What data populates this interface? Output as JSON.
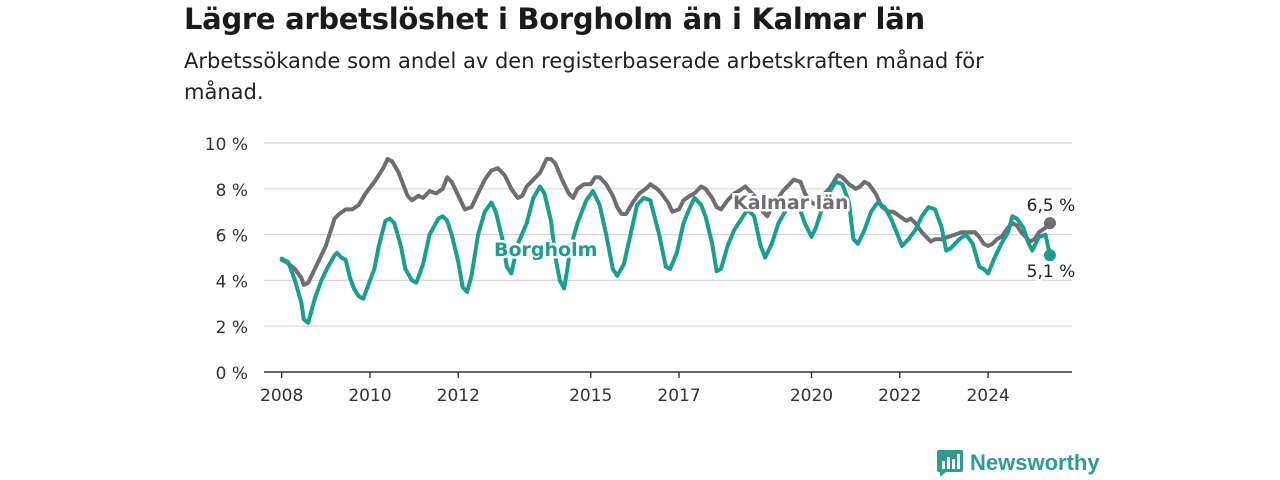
{
  "header": {
    "title": "Lägre arbetslöshet i Borgholm än i Kalmar län",
    "subtitle": "Arbetssökande som andel av den registerbaserade arbetskraften månad för månad."
  },
  "brand": {
    "name": "Newsworthy",
    "icon": "bar-chart-logo-icon",
    "color": "#2f9c94"
  },
  "chart_data": {
    "type": "line",
    "title": "Lägre arbetslöshet i Borgholm än i Kalmar län",
    "subtitle": "Arbetssökande som andel av den registerbaserade arbetskraften månad för månad.",
    "x_ticks": [
      {
        "value": 2008,
        "label": "2008"
      },
      {
        "value": 2010,
        "label": "2010"
      },
      {
        "value": 2012,
        "label": "2012"
      },
      {
        "value": 2015,
        "label": "2015"
      },
      {
        "value": 2017,
        "label": "2017"
      },
      {
        "value": 2020,
        "label": "2020"
      },
      {
        "value": 2022,
        "label": "2022"
      },
      {
        "value": 2024,
        "label": "2024"
      }
    ],
    "y_ticks": [
      {
        "value": 0,
        "label": "0 %"
      },
      {
        "value": 2,
        "label": "2 %"
      },
      {
        "value": 4,
        "label": "4 %"
      },
      {
        "value": 6,
        "label": "6 %"
      },
      {
        "value": 8,
        "label": "8 %"
      },
      {
        "value": 10,
        "label": "10 %"
      }
    ],
    "xlim": [
      2007.6,
      2025.9
    ],
    "ylim": [
      0,
      10
    ],
    "grid": "horizontal",
    "series": [
      {
        "name": "Kalmar län",
        "color": "#6e6d72",
        "label": "Kalmar län",
        "end_label": "6,5 %",
        "end_value": 6.5,
        "points": [
          [
            2008.0,
            4.9
          ],
          [
            2008.1,
            4.8
          ],
          [
            2008.3,
            4.5
          ],
          [
            2008.45,
            4.1
          ],
          [
            2008.5,
            3.8
          ],
          [
            2008.6,
            3.9
          ],
          [
            2008.8,
            4.7
          ],
          [
            2009.0,
            5.5
          ],
          [
            2009.2,
            6.7
          ],
          [
            2009.3,
            6.9
          ],
          [
            2009.45,
            7.1
          ],
          [
            2009.6,
            7.1
          ],
          [
            2009.75,
            7.3
          ],
          [
            2009.9,
            7.8
          ],
          [
            2010.1,
            8.3
          ],
          [
            2010.3,
            8.9
          ],
          [
            2010.4,
            9.3
          ],
          [
            2010.5,
            9.2
          ],
          [
            2010.65,
            8.7
          ],
          [
            2010.85,
            7.7
          ],
          [
            2010.95,
            7.5
          ],
          [
            2011.1,
            7.7
          ],
          [
            2011.2,
            7.6
          ],
          [
            2011.35,
            7.9
          ],
          [
            2011.5,
            7.8
          ],
          [
            2011.65,
            8.0
          ],
          [
            2011.75,
            8.5
          ],
          [
            2011.85,
            8.3
          ],
          [
            2012.05,
            7.5
          ],
          [
            2012.15,
            7.1
          ],
          [
            2012.3,
            7.2
          ],
          [
            2012.45,
            7.8
          ],
          [
            2012.6,
            8.4
          ],
          [
            2012.75,
            8.8
          ],
          [
            2012.9,
            8.9
          ],
          [
            2013.05,
            8.6
          ],
          [
            2013.2,
            8.0
          ],
          [
            2013.35,
            7.6
          ],
          [
            2013.45,
            7.7
          ],
          [
            2013.55,
            8.1
          ],
          [
            2013.7,
            8.4
          ],
          [
            2013.85,
            8.7
          ],
          [
            2014.0,
            9.3
          ],
          [
            2014.1,
            9.3
          ],
          [
            2014.2,
            9.1
          ],
          [
            2014.35,
            8.4
          ],
          [
            2014.5,
            7.8
          ],
          [
            2014.6,
            7.6
          ],
          [
            2014.7,
            8.0
          ],
          [
            2014.85,
            8.2
          ],
          [
            2015.0,
            8.2
          ],
          [
            2015.1,
            8.5
          ],
          [
            2015.2,
            8.5
          ],
          [
            2015.35,
            8.2
          ],
          [
            2015.5,
            7.7
          ],
          [
            2015.6,
            7.2
          ],
          [
            2015.7,
            6.9
          ],
          [
            2015.8,
            6.9
          ],
          [
            2015.95,
            7.4
          ],
          [
            2016.1,
            7.8
          ],
          [
            2016.25,
            8.0
          ],
          [
            2016.35,
            8.2
          ],
          [
            2016.5,
            8.0
          ],
          [
            2016.6,
            7.8
          ],
          [
            2016.75,
            7.4
          ],
          [
            2016.85,
            7.0
          ],
          [
            2017.0,
            7.1
          ],
          [
            2017.1,
            7.5
          ],
          [
            2017.25,
            7.7
          ],
          [
            2017.35,
            7.8
          ],
          [
            2017.5,
            8.1
          ],
          [
            2017.6,
            8.0
          ],
          [
            2017.75,
            7.6
          ],
          [
            2017.85,
            7.2
          ],
          [
            2017.95,
            7.1
          ],
          [
            2018.1,
            7.5
          ],
          [
            2018.25,
            7.8
          ],
          [
            2018.35,
            7.9
          ],
          [
            2018.5,
            8.1
          ],
          [
            2018.6,
            7.9
          ],
          [
            2018.75,
            7.6
          ],
          [
            2018.9,
            7.0
          ],
          [
            2019.0,
            6.8
          ],
          [
            2019.1,
            7.2
          ],
          [
            2019.25,
            7.6
          ],
          [
            2019.35,
            7.9
          ],
          [
            2019.5,
            8.2
          ],
          [
            2019.6,
            8.4
          ],
          [
            2019.75,
            8.3
          ],
          [
            2019.85,
            7.8
          ],
          [
            2020.0,
            7.4
          ],
          [
            2020.1,
            7.3
          ],
          [
            2020.25,
            7.7
          ],
          [
            2020.4,
            8.0
          ],
          [
            2020.5,
            8.3
          ],
          [
            2020.6,
            8.6
          ],
          [
            2020.7,
            8.5
          ],
          [
            2020.85,
            8.2
          ],
          [
            2021.0,
            8.0
          ],
          [
            2021.1,
            8.1
          ],
          [
            2021.2,
            8.3
          ],
          [
            2021.3,
            8.2
          ],
          [
            2021.45,
            7.8
          ],
          [
            2021.6,
            7.2
          ],
          [
            2021.75,
            7.0
          ],
          [
            2021.85,
            7.0
          ],
          [
            2022.0,
            6.8
          ],
          [
            2022.15,
            6.6
          ],
          [
            2022.25,
            6.7
          ],
          [
            2022.35,
            6.5
          ],
          [
            2022.5,
            6.1
          ],
          [
            2022.6,
            5.9
          ],
          [
            2022.7,
            5.7
          ],
          [
            2022.8,
            5.8
          ],
          [
            2022.95,
            5.8
          ],
          [
            2023.1,
            5.9
          ],
          [
            2023.25,
            6.0
          ],
          [
            2023.4,
            6.1
          ],
          [
            2023.55,
            6.1
          ],
          [
            2023.7,
            6.1
          ],
          [
            2023.8,
            5.9
          ],
          [
            2023.9,
            5.6
          ],
          [
            2024.0,
            5.5
          ],
          [
            2024.1,
            5.6
          ],
          [
            2024.2,
            5.8
          ],
          [
            2024.3,
            5.9
          ],
          [
            2024.45,
            6.3
          ],
          [
            2024.55,
            6.5
          ],
          [
            2024.65,
            6.4
          ],
          [
            2024.75,
            6.1
          ],
          [
            2024.85,
            5.9
          ],
          [
            2024.95,
            5.7
          ],
          [
            2025.05,
            5.8
          ],
          [
            2025.15,
            6.1
          ],
          [
            2025.3,
            6.3
          ],
          [
            2025.4,
            6.5
          ]
        ]
      },
      {
        "name": "Borgholm",
        "color": "#1a9e90",
        "label": "Borgholm",
        "end_label": "5,1 %",
        "end_value": 5.1,
        "points": [
          [
            2008.0,
            4.95
          ],
          [
            2008.15,
            4.8
          ],
          [
            2008.3,
            4.0
          ],
          [
            2008.45,
            3.0
          ],
          [
            2008.5,
            2.3
          ],
          [
            2008.6,
            2.15
          ],
          [
            2008.75,
            3.2
          ],
          [
            2008.9,
            4.0
          ],
          [
            2009.05,
            4.6
          ],
          [
            2009.2,
            5.1
          ],
          [
            2009.25,
            5.2
          ],
          [
            2009.35,
            5.0
          ],
          [
            2009.45,
            4.9
          ],
          [
            2009.55,
            4.1
          ],
          [
            2009.65,
            3.6
          ],
          [
            2009.75,
            3.3
          ],
          [
            2009.85,
            3.2
          ],
          [
            2010.0,
            4.0
          ],
          [
            2010.1,
            4.5
          ],
          [
            2010.2,
            5.5
          ],
          [
            2010.35,
            6.6
          ],
          [
            2010.45,
            6.7
          ],
          [
            2010.55,
            6.5
          ],
          [
            2010.7,
            5.5
          ],
          [
            2010.8,
            4.5
          ],
          [
            2010.95,
            4.0
          ],
          [
            2011.05,
            3.9
          ],
          [
            2011.2,
            4.7
          ],
          [
            2011.35,
            6.0
          ],
          [
            2011.55,
            6.7
          ],
          [
            2011.65,
            6.8
          ],
          [
            2011.75,
            6.6
          ],
          [
            2011.85,
            6.0
          ],
          [
            2012.0,
            4.8
          ],
          [
            2012.1,
            3.7
          ],
          [
            2012.2,
            3.5
          ],
          [
            2012.3,
            4.2
          ],
          [
            2012.45,
            6.0
          ],
          [
            2012.6,
            7.0
          ],
          [
            2012.75,
            7.4
          ],
          [
            2012.85,
            7.0
          ],
          [
            2013.0,
            5.8
          ],
          [
            2013.1,
            4.6
          ],
          [
            2013.2,
            4.3
          ],
          [
            2013.35,
            5.6
          ],
          [
            2013.55,
            6.5
          ],
          [
            2013.7,
            7.6
          ],
          [
            2013.85,
            8.1
          ],
          [
            2013.95,
            7.8
          ],
          [
            2014.1,
            6.6
          ],
          [
            2014.2,
            5.0
          ],
          [
            2014.3,
            4.0
          ],
          [
            2014.4,
            3.65
          ],
          [
            2014.55,
            5.5
          ],
          [
            2014.7,
            6.5
          ],
          [
            2014.9,
            7.5
          ],
          [
            2015.05,
            7.9
          ],
          [
            2015.2,
            7.3
          ],
          [
            2015.35,
            6.0
          ],
          [
            2015.5,
            4.5
          ],
          [
            2015.6,
            4.2
          ],
          [
            2015.75,
            4.7
          ],
          [
            2015.9,
            6.0
          ],
          [
            2016.05,
            7.3
          ],
          [
            2016.2,
            7.6
          ],
          [
            2016.35,
            7.5
          ],
          [
            2016.55,
            6.0
          ],
          [
            2016.7,
            4.6
          ],
          [
            2016.8,
            4.5
          ],
          [
            2016.95,
            5.2
          ],
          [
            2017.1,
            6.5
          ],
          [
            2017.25,
            7.2
          ],
          [
            2017.35,
            7.6
          ],
          [
            2017.5,
            7.3
          ],
          [
            2017.6,
            6.8
          ],
          [
            2017.75,
            5.6
          ],
          [
            2017.85,
            4.4
          ],
          [
            2017.95,
            4.5
          ],
          [
            2018.1,
            5.5
          ],
          [
            2018.25,
            6.2
          ],
          [
            2018.45,
            6.8
          ],
          [
            2018.55,
            7.1
          ],
          [
            2018.7,
            6.8
          ],
          [
            2018.85,
            5.5
          ],
          [
            2018.95,
            5.0
          ],
          [
            2019.1,
            5.6
          ],
          [
            2019.25,
            6.5
          ],
          [
            2019.4,
            7.0
          ],
          [
            2019.55,
            7.5
          ],
          [
            2019.7,
            7.3
          ],
          [
            2019.85,
            6.5
          ],
          [
            2020.0,
            5.9
          ],
          [
            2020.1,
            6.3
          ],
          [
            2020.25,
            7.2
          ],
          [
            2020.45,
            8.0
          ],
          [
            2020.55,
            8.3
          ],
          [
            2020.7,
            8.2
          ],
          [
            2020.85,
            7.4
          ],
          [
            2020.95,
            5.8
          ],
          [
            2021.05,
            5.6
          ],
          [
            2021.2,
            6.2
          ],
          [
            2021.35,
            7.0
          ],
          [
            2021.5,
            7.4
          ],
          [
            2021.65,
            7.2
          ],
          [
            2021.8,
            6.7
          ],
          [
            2021.95,
            6.0
          ],
          [
            2022.05,
            5.5
          ],
          [
            2022.2,
            5.8
          ],
          [
            2022.35,
            6.2
          ],
          [
            2022.5,
            6.8
          ],
          [
            2022.65,
            7.2
          ],
          [
            2022.8,
            7.1
          ],
          [
            2022.95,
            6.3
          ],
          [
            2023.05,
            5.3
          ],
          [
            2023.15,
            5.4
          ],
          [
            2023.35,
            5.8
          ],
          [
            2023.5,
            6.0
          ],
          [
            2023.65,
            5.6
          ],
          [
            2023.8,
            4.6
          ],
          [
            2023.9,
            4.5
          ],
          [
            2024.0,
            4.3
          ],
          [
            2024.15,
            5.0
          ],
          [
            2024.3,
            5.6
          ],
          [
            2024.45,
            6.1
          ],
          [
            2024.55,
            6.8
          ],
          [
            2024.65,
            6.7
          ],
          [
            2024.8,
            6.3
          ],
          [
            2024.9,
            5.7
          ],
          [
            2025.0,
            5.3
          ],
          [
            2025.15,
            5.9
          ],
          [
            2025.3,
            6.0
          ],
          [
            2025.4,
            5.1
          ]
        ]
      }
    ]
  }
}
